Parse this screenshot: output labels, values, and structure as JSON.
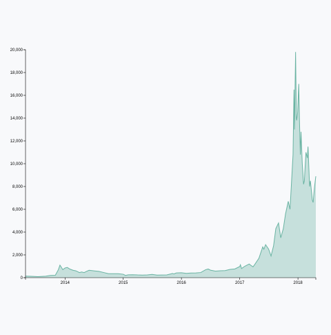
{
  "chart_data": {
    "type": "area",
    "title": "",
    "xlabel": "",
    "ylabel": "",
    "x_ticks": [
      "2014",
      "2015",
      "2016",
      "2017",
      "2018"
    ],
    "x_tick_values": [
      "2014-01-01",
      "2015-01-01",
      "2016-01-01",
      "2017-01-01",
      "2018-01-01"
    ],
    "y_ticks": [
      "0",
      "2,000",
      "4,000",
      "6,000",
      "8,000",
      "10,000",
      "12,000",
      "14,000",
      "16,000",
      "18,000",
      "20,000"
    ],
    "y_tick_values": [
      0,
      2000,
      4000,
      6000,
      8000,
      10000,
      12000,
      14000,
      16000,
      18000,
      20000
    ],
    "ylim": [
      0,
      20000
    ],
    "xlim": [
      "2013-04-28",
      "2018-04-23"
    ],
    "grid": false,
    "fill_color": "#69b3a2",
    "stroke_color": "#69b3a2",
    "series": [
      {
        "x": [
          "2013-04-28",
          "2013-06-01",
          "2013-07-15",
          "2013-09-01",
          "2013-10-01",
          "2013-11-01",
          "2013-11-20",
          "2013-11-30",
          "2013-12-05",
          "2013-12-18",
          "2014-01-01",
          "2014-01-15",
          "2014-02-01",
          "2014-02-20",
          "2014-03-10",
          "2014-04-01",
          "2014-04-15",
          "2014-05-01",
          "2014-05-15",
          "2014-06-01",
          "2014-07-01",
          "2014-08-01",
          "2014-09-01",
          "2014-10-01",
          "2014-11-01",
          "2014-12-01",
          "2015-01-01",
          "2015-01-15",
          "2015-02-01",
          "2015-03-01",
          "2015-04-01",
          "2015-05-01",
          "2015-06-01",
          "2015-07-01",
          "2015-08-01",
          "2015-09-01",
          "2015-10-01",
          "2015-11-01",
          "2015-11-05",
          "2015-11-15",
          "2015-12-01",
          "2016-01-01",
          "2016-02-01",
          "2016-03-01",
          "2016-04-01",
          "2016-05-01",
          "2016-06-01",
          "2016-06-17",
          "2016-07-01",
          "2016-08-01",
          "2016-09-01",
          "2016-10-01",
          "2016-11-01",
          "2016-12-01",
          "2017-01-01",
          "2017-01-05",
          "2017-01-12",
          "2017-02-01",
          "2017-03-01",
          "2017-03-10",
          "2017-03-25",
          "2017-04-01",
          "2017-05-01",
          "2017-05-25",
          "2017-06-01",
          "2017-06-12",
          "2017-07-01",
          "2017-07-16",
          "2017-08-01",
          "2017-08-15",
          "2017-09-01",
          "2017-09-15",
          "2017-10-01",
          "2017-10-15",
          "2017-11-01",
          "2017-11-12",
          "2017-11-20",
          "2017-12-01",
          "2017-12-07",
          "2017-12-10",
          "2017-12-17",
          "2017-12-22",
          "2017-12-24",
          "2017-12-30",
          "2018-01-06",
          "2018-01-10",
          "2018-01-16",
          "2018-01-20",
          "2018-01-28",
          "2018-02-05",
          "2018-02-10",
          "2018-02-20",
          "2018-03-01",
          "2018-03-05",
          "2018-03-15",
          "2018-03-20",
          "2018-04-01",
          "2018-04-06",
          "2018-04-15",
          "2018-04-23"
        ],
        "values": [
          140,
          125,
          90,
          130,
          200,
          210,
          700,
          1100,
          1000,
          700,
          850,
          900,
          750,
          650,
          600,
          450,
          500,
          450,
          550,
          650,
          600,
          550,
          450,
          350,
          350,
          350,
          300,
          200,
          250,
          260,
          240,
          230,
          240,
          285,
          230,
          235,
          245,
          350,
          370,
          330,
          420,
          430,
          380,
          410,
          420,
          450,
          700,
          760,
          660,
          575,
          605,
          620,
          725,
          765,
          980,
          1130,
          800,
          1000,
          1200,
          1100,
          950,
          1080,
          1700,
          2700,
          2500,
          2900,
          2500,
          1900,
          2800,
          4300,
          4800,
          3500,
          4300,
          5600,
          6700,
          6000,
          8000,
          10800,
          16500,
          13000,
          19800,
          14000,
          13800,
          14500,
          17000,
          14000,
          10800,
          12800,
          10000,
          8200,
          8500,
          11000,
          10500,
          11500,
          8000,
          8500,
          6800,
          6600,
          8000,
          8900
        ]
      }
    ]
  }
}
